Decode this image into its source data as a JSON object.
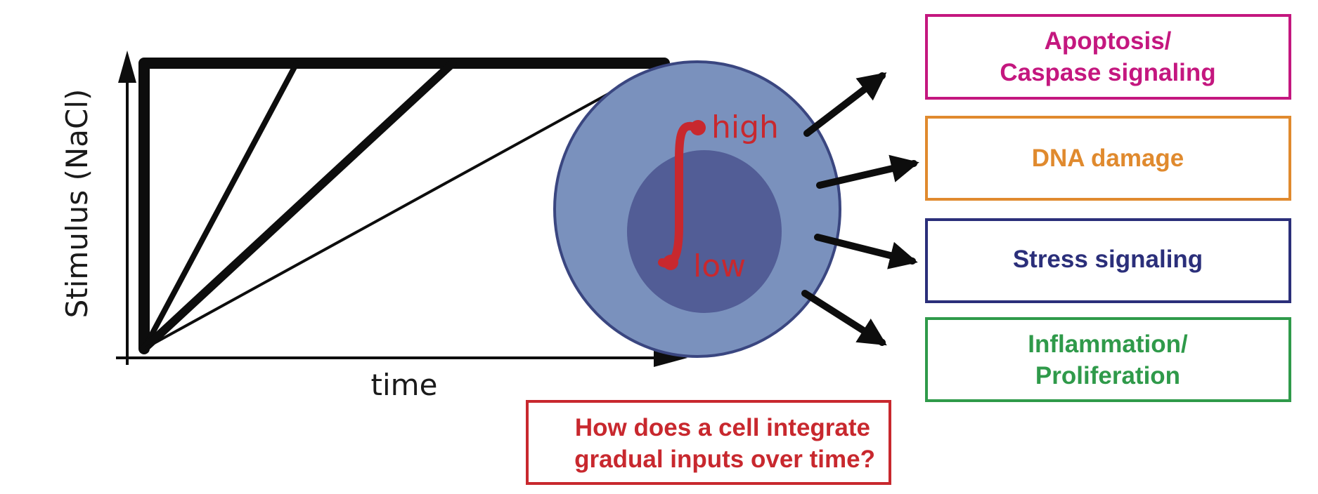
{
  "plot": {
    "ylabel": "Stimulus (NaCl)",
    "xlabel": "time"
  },
  "cell": {
    "integral_high": "high",
    "integral_low": "low"
  },
  "outcomes": [
    {
      "line1": "Apoptosis/",
      "line2": "Caspase signaling",
      "color": "#c4177f"
    },
    {
      "line1": "DNA damage",
      "line2": "",
      "color": "#e08a2e"
    },
    {
      "line1": "Stress signaling",
      "line2": "",
      "color": "#2b2f7a"
    },
    {
      "line1": "Inflammation/",
      "line2": "Proliferation",
      "color": "#2f9a4a"
    }
  ],
  "question": {
    "line1": "How does a cell integrate",
    "line2": "gradual inputs over time?",
    "color": "#c8282e"
  },
  "colors": {
    "cell_outer": "#7a91bd",
    "cell_inner": "#525d96",
    "cell_stroke": "#3a4680",
    "integral": "#c8282e",
    "lines": "#0d0d0d"
  }
}
